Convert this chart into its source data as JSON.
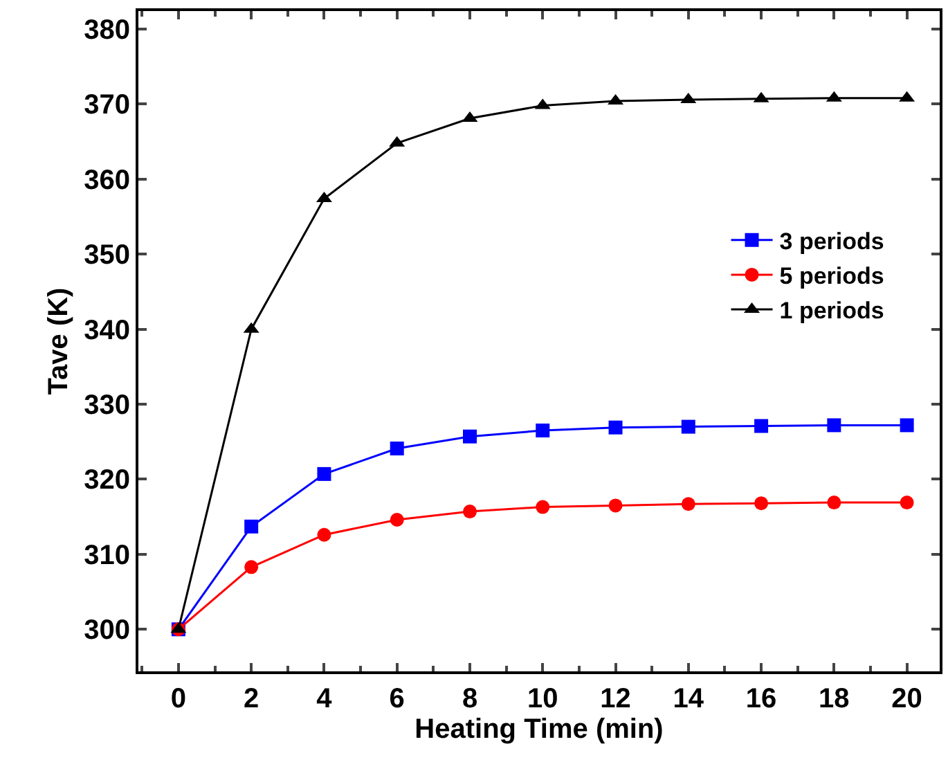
{
  "chart_data": {
    "type": "line",
    "xlabel": "Heating Time (min)",
    "ylabel": "Tave (K)",
    "x": [
      0,
      2,
      4,
      6,
      8,
      10,
      12,
      14,
      16,
      18,
      20
    ],
    "series": [
      {
        "name": "3 periods",
        "color": "#0000ff",
        "marker": "square",
        "values": [
          300,
          313.7,
          320.7,
          324.1,
          325.7,
          326.5,
          326.9,
          327.0,
          327.1,
          327.2,
          327.2
        ]
      },
      {
        "name": "5 periods",
        "color": "#ff0000",
        "marker": "circle",
        "values": [
          300,
          308.3,
          312.6,
          314.6,
          315.7,
          316.3,
          316.5,
          316.7,
          316.8,
          316.9,
          316.9
        ]
      },
      {
        "name": "1 periods",
        "color": "#000000",
        "marker": "triangle",
        "values": [
          300,
          340,
          357.4,
          364.8,
          368.1,
          369.8,
          370.4,
          370.6,
          370.7,
          370.8,
          370.8
        ]
      }
    ],
    "xlim": [
      -1.1,
      20.9
    ],
    "xticks": [
      0,
      2,
      4,
      6,
      8,
      10,
      12,
      14,
      16,
      18,
      20
    ],
    "ylim": [
      294.4,
      382.4
    ],
    "yticks": [
      300,
      310,
      320,
      330,
      340,
      350,
      360,
      370,
      380
    ],
    "legend": "right",
    "line_style": "solid"
  }
}
